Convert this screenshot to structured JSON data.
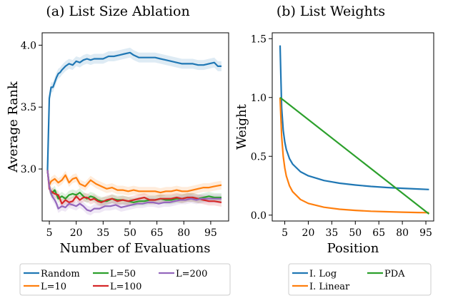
{
  "chart_data": [
    {
      "type": "line",
      "title": "(a) List Size Ablation",
      "xlabel": "Number of Evaluations",
      "ylabel": "Average Rank",
      "xticks": [
        5,
        20,
        35,
        50,
        65,
        80,
        95
      ],
      "yticks": [
        3.0,
        3.5,
        4.0
      ],
      "xlim": [
        1,
        105
      ],
      "ylim": [
        2.58,
        4.1
      ],
      "grid": false,
      "shaded_band": true,
      "legend_placement": "bottom (below chart)",
      "series": [
        {
          "name": "Random",
          "color": "#1f77b4",
          "band": 0.04,
          "x": [
            4,
            5,
            6,
            7,
            8,
            9,
            10,
            11,
            12,
            14,
            16,
            18,
            20,
            22,
            24,
            26,
            28,
            30,
            32,
            35,
            38,
            41,
            44,
            47,
            50,
            52,
            55,
            58,
            61,
            64,
            67,
            70,
            73,
            76,
            79,
            82,
            85,
            88,
            91,
            94,
            97,
            99,
            101
          ],
          "y": [
            2.99,
            3.57,
            3.66,
            3.66,
            3.7,
            3.74,
            3.77,
            3.78,
            3.8,
            3.83,
            3.85,
            3.84,
            3.87,
            3.86,
            3.88,
            3.89,
            3.88,
            3.89,
            3.89,
            3.89,
            3.91,
            3.91,
            3.92,
            3.93,
            3.94,
            3.92,
            3.9,
            3.9,
            3.9,
            3.9,
            3.89,
            3.88,
            3.87,
            3.86,
            3.85,
            3.85,
            3.85,
            3.84,
            3.84,
            3.85,
            3.86,
            3.83,
            3.83
          ]
        },
        {
          "name": "L=10",
          "color": "#ff7f0e",
          "band": 0.035,
          "x": [
            4,
            5,
            6,
            8,
            10,
            12,
            14,
            16,
            18,
            20,
            22,
            25,
            28,
            31,
            34,
            37,
            40,
            43,
            46,
            49,
            52,
            55,
            58,
            61,
            64,
            67,
            70,
            73,
            76,
            79,
            82,
            85,
            88,
            91,
            94,
            97,
            101
          ],
          "y": [
            2.99,
            2.87,
            2.9,
            2.92,
            2.89,
            2.91,
            2.95,
            2.89,
            2.92,
            2.93,
            2.88,
            2.86,
            2.91,
            2.88,
            2.86,
            2.84,
            2.85,
            2.83,
            2.83,
            2.82,
            2.83,
            2.82,
            2.82,
            2.82,
            2.82,
            2.81,
            2.82,
            2.82,
            2.83,
            2.82,
            2.82,
            2.83,
            2.84,
            2.85,
            2.85,
            2.86,
            2.87
          ]
        },
        {
          "name": "L=50",
          "color": "#2ca02c",
          "band": 0.035,
          "x": [
            4,
            5,
            6,
            8,
            10,
            12,
            14,
            16,
            18,
            20,
            22,
            24,
            26,
            28,
            30,
            32,
            34,
            37,
            40,
            43,
            46,
            49,
            52,
            55,
            58,
            61,
            64,
            67,
            70,
            73,
            76,
            79,
            82,
            85,
            88,
            91,
            94,
            97,
            101
          ],
          "y": [
            2.99,
            2.86,
            2.8,
            2.83,
            2.76,
            2.78,
            2.76,
            2.79,
            2.8,
            2.79,
            2.81,
            2.78,
            2.76,
            2.78,
            2.77,
            2.75,
            2.74,
            2.74,
            2.76,
            2.75,
            2.75,
            2.74,
            2.73,
            2.74,
            2.74,
            2.75,
            2.75,
            2.76,
            2.75,
            2.75,
            2.76,
            2.76,
            2.77,
            2.77,
            2.76,
            2.77,
            2.78,
            2.77,
            2.77
          ]
        },
        {
          "name": "L=100",
          "color": "#d62728",
          "band": 0.035,
          "x": [
            4,
            5,
            6,
            8,
            10,
            12,
            14,
            16,
            18,
            20,
            22,
            24,
            26,
            28,
            30,
            32,
            34,
            37,
            40,
            43,
            46,
            49,
            52,
            55,
            58,
            61,
            64,
            67,
            70,
            73,
            76,
            79,
            82,
            85,
            88,
            91,
            94,
            97,
            101
          ],
          "y": [
            2.99,
            2.84,
            2.82,
            2.8,
            2.79,
            2.72,
            2.75,
            2.73,
            2.74,
            2.78,
            2.75,
            2.77,
            2.77,
            2.75,
            2.76,
            2.74,
            2.73,
            2.75,
            2.76,
            2.74,
            2.75,
            2.74,
            2.75,
            2.76,
            2.77,
            2.75,
            2.75,
            2.76,
            2.76,
            2.76,
            2.77,
            2.76,
            2.77,
            2.77,
            2.76,
            2.75,
            2.74,
            2.74,
            2.73
          ]
        },
        {
          "name": "L=200",
          "color": "#9467bd",
          "band": 0.035,
          "x": [
            4,
            5,
            6,
            7,
            8,
            9,
            10,
            12,
            14,
            16,
            18,
            20,
            22,
            24,
            26,
            28,
            30,
            33,
            36,
            39,
            42,
            45,
            48,
            51,
            54,
            57,
            60,
            63,
            66,
            69,
            72,
            75,
            78,
            81,
            84,
            87,
            90,
            93,
            96,
            101
          ],
          "y": [
            2.99,
            2.86,
            2.8,
            2.77,
            2.75,
            2.72,
            2.68,
            2.7,
            2.69,
            2.72,
            2.71,
            2.7,
            2.72,
            2.7,
            2.67,
            2.66,
            2.68,
            2.68,
            2.7,
            2.7,
            2.71,
            2.69,
            2.7,
            2.71,
            2.72,
            2.72,
            2.73,
            2.73,
            2.72,
            2.73,
            2.73,
            2.74,
            2.75,
            2.75,
            2.76,
            2.75,
            2.76,
            2.76,
            2.76,
            2.76
          ]
        }
      ]
    },
    {
      "type": "line",
      "title": "(b) List Weights",
      "xlabel": "Position",
      "ylabel": "Weight",
      "xticks": [
        5,
        20,
        35,
        50,
        65,
        80,
        95
      ],
      "yticks": [
        0.0,
        0.5,
        1.0,
        1.5
      ],
      "xlim": [
        -3,
        100
      ],
      "ylim": [
        -0.05,
        1.55
      ],
      "grid": false,
      "legend_placement": "bottom (below chart)",
      "series": [
        {
          "name": "I. Log",
          "color": "#1f77b4",
          "x": [
            2,
            3,
            4,
            5,
            6,
            8,
            10,
            15,
            20,
            30,
            40,
            50,
            60,
            70,
            80,
            90,
            97
          ],
          "y": [
            1.443,
            0.91,
            0.72,
            0.62,
            0.558,
            0.481,
            0.434,
            0.369,
            0.334,
            0.294,
            0.271,
            0.256,
            0.244,
            0.235,
            0.228,
            0.222,
            0.218
          ]
        },
        {
          "name": "I. Linear",
          "color": "#ff7f0e",
          "x": [
            2,
            3,
            4,
            5,
            6,
            8,
            10,
            15,
            20,
            30,
            40,
            50,
            60,
            70,
            80,
            90,
            97
          ],
          "y": [
            1.0,
            0.667,
            0.5,
            0.4,
            0.333,
            0.25,
            0.2,
            0.133,
            0.1,
            0.067,
            0.05,
            0.04,
            0.033,
            0.029,
            0.025,
            0.022,
            0.021
          ]
        },
        {
          "name": "PDA",
          "color": "#2ca02c",
          "x": [
            2,
            97
          ],
          "y": [
            1.0,
            0.01
          ]
        }
      ]
    }
  ]
}
